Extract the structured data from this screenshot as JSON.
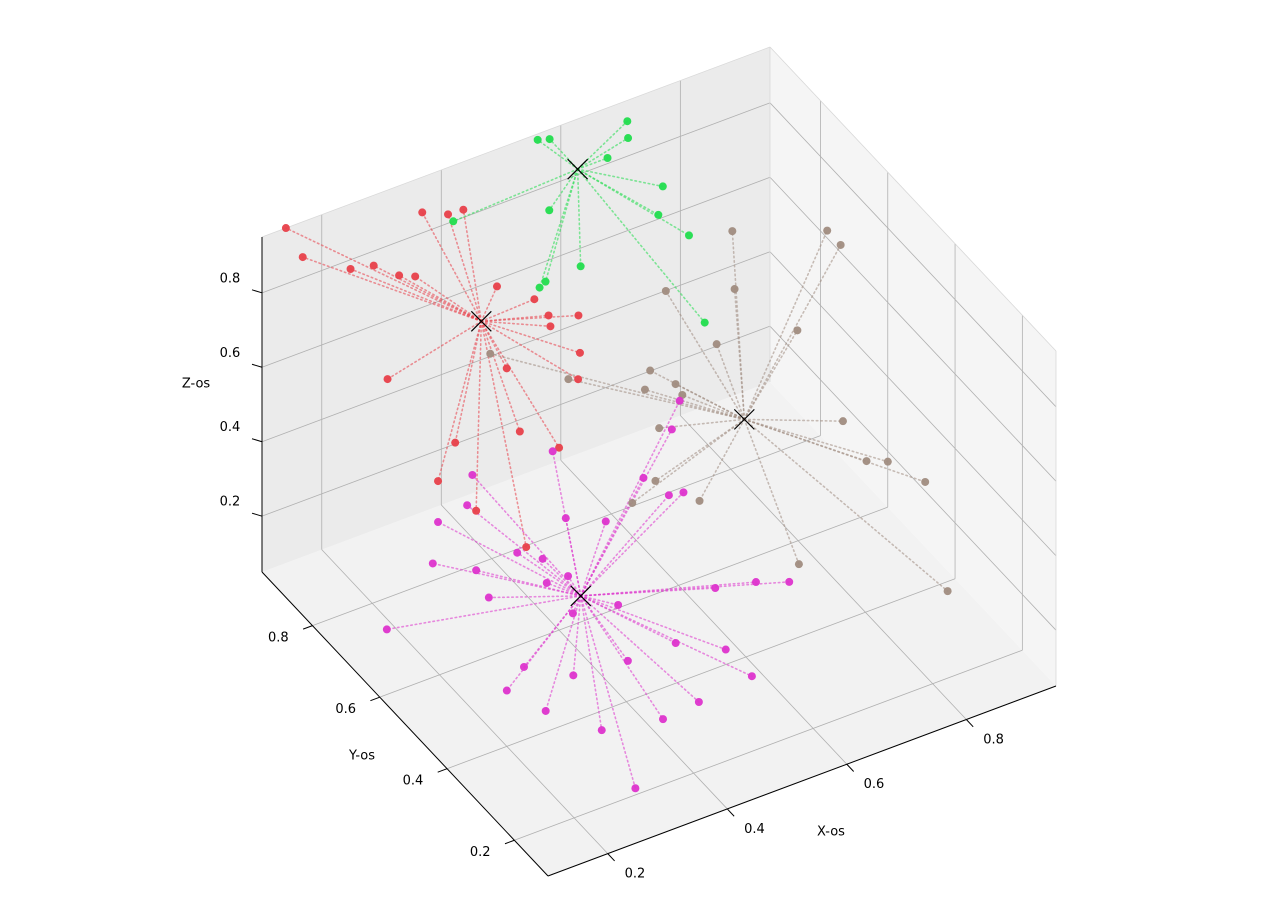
{
  "chart_data": {
    "type": "scatter",
    "projection": "3d",
    "grid": true,
    "xlabel": "X-os",
    "ylabel": "Y-os",
    "zlabel": "Z-os",
    "xlim": [
      0.1,
      0.95
    ],
    "ylim": [
      0.1,
      0.95
    ],
    "zlim": [
      0.05,
      0.95
    ],
    "x_ticks": [
      0.2,
      0.4,
      0.6,
      0.8
    ],
    "y_ticks": [
      0.2,
      0.4,
      0.6,
      0.8
    ],
    "z_ticks": [
      0.2,
      0.4,
      0.6,
      0.8
    ],
    "x_tick_labels": [
      "0.2",
      "0.4",
      "0.6",
      "0.8"
    ],
    "y_tick_labels": [
      "0.2",
      "0.4",
      "0.6",
      "0.8"
    ],
    "z_tick_labels": [
      "0.2",
      "0.4",
      "0.6",
      "0.8"
    ],
    "centroid_marker": "x",
    "centroid_color": "#000000",
    "connector_style": "dotted",
    "clusters": [
      {
        "color": "#e8404a",
        "centroid": [
          0.36,
          0.76,
          0.75
        ],
        "points": [
          [
            0.14,
            0.95,
            0.95
          ],
          [
            0.14,
            0.9,
            0.92
          ],
          [
            0.22,
            0.9,
            0.84
          ],
          [
            0.27,
            0.92,
            0.8
          ],
          [
            0.3,
            0.85,
            0.82
          ],
          [
            0.34,
            0.9,
            0.92
          ],
          [
            0.29,
            0.88,
            0.8
          ],
          [
            0.4,
            0.93,
            0.85
          ],
          [
            0.42,
            0.82,
            0.75
          ],
          [
            0.42,
            0.92,
            0.86
          ],
          [
            0.45,
            0.72,
            0.75
          ],
          [
            0.46,
            0.78,
            0.73
          ],
          [
            0.47,
            0.75,
            0.68
          ],
          [
            0.48,
            0.68,
            0.67
          ],
          [
            0.5,
            0.72,
            0.72
          ],
          [
            0.46,
            0.65,
            0.64
          ],
          [
            0.22,
            0.79,
            0.65
          ],
          [
            0.38,
            0.72,
            0.65
          ],
          [
            0.26,
            0.66,
            0.58
          ],
          [
            0.22,
            0.64,
            0.52
          ],
          [
            0.34,
            0.61,
            0.61
          ],
          [
            0.25,
            0.58,
            0.48
          ],
          [
            0.4,
            0.6,
            0.54
          ],
          [
            0.3,
            0.52,
            0.41
          ]
        ]
      },
      {
        "color": "#22dd4e",
        "centroid": [
          0.6,
          0.9,
          0.88
        ],
        "points": [
          [
            0.42,
            0.95,
            0.8
          ],
          [
            0.55,
            0.93,
            0.96
          ],
          [
            0.57,
            0.93,
            0.95
          ],
          [
            0.7,
            0.93,
            0.92
          ],
          [
            0.69,
            0.91,
            0.9
          ],
          [
            0.65,
            0.9,
            0.88
          ],
          [
            0.53,
            0.86,
            0.85
          ],
          [
            0.72,
            0.86,
            0.8
          ],
          [
            0.69,
            0.82,
            0.78
          ],
          [
            0.73,
            0.8,
            0.72
          ],
          [
            0.48,
            0.8,
            0.73
          ],
          [
            0.49,
            0.8,
            0.74
          ],
          [
            0.56,
            0.82,
            0.72
          ],
          [
            0.7,
            0.7,
            0.6
          ]
        ]
      },
      {
        "color": "#a08c80",
        "centroid": [
          0.71,
          0.6,
          0.43
        ],
        "points": [
          [
            0.42,
            0.84,
            0.55
          ],
          [
            0.5,
            0.75,
            0.52
          ],
          [
            0.62,
            0.72,
            0.5
          ],
          [
            0.6,
            0.7,
            0.48
          ],
          [
            0.64,
            0.68,
            0.49
          ],
          [
            0.59,
            0.64,
            0.44
          ],
          [
            0.64,
            0.66,
            0.48
          ],
          [
            0.72,
            0.7,
            0.53
          ],
          [
            0.68,
            0.78,
            0.62
          ],
          [
            0.75,
            0.7,
            0.66
          ],
          [
            0.78,
            0.76,
            0.74
          ],
          [
            0.55,
            0.58,
            0.38
          ],
          [
            0.59,
            0.52,
            0.36
          ],
          [
            0.5,
            0.56,
            0.37
          ],
          [
            0.81,
            0.62,
            0.59
          ],
          [
            0.83,
            0.52,
            0.43
          ],
          [
            0.86,
            0.44,
            0.38
          ],
          [
            0.83,
            0.45,
            0.39
          ],
          [
            0.9,
            0.4,
            0.34
          ],
          [
            0.95,
            0.78,
            0.62
          ],
          [
            0.95,
            0.74,
            0.62
          ],
          [
            0.7,
            0.42,
            0.22
          ],
          [
            0.87,
            0.28,
            0.18
          ]
        ]
      },
      {
        "color": "#dd33cc",
        "centroid": [
          0.38,
          0.5,
          0.25
        ],
        "points": [
          [
            0.14,
            0.65,
            0.16
          ],
          [
            0.2,
            0.62,
            0.33
          ],
          [
            0.22,
            0.64,
            0.41
          ],
          [
            0.28,
            0.66,
            0.4
          ],
          [
            0.3,
            0.68,
            0.45
          ],
          [
            0.44,
            0.69,
            0.42
          ],
          [
            0.25,
            0.58,
            0.32
          ],
          [
            0.26,
            0.56,
            0.26
          ],
          [
            0.33,
            0.6,
            0.3
          ],
          [
            0.35,
            0.56,
            0.31
          ],
          [
            0.34,
            0.53,
            0.28
          ],
          [
            0.37,
            0.52,
            0.29
          ],
          [
            0.4,
            0.58,
            0.37
          ],
          [
            0.45,
            0.55,
            0.36
          ],
          [
            0.53,
            0.58,
            0.4
          ],
          [
            0.55,
            0.54,
            0.38
          ],
          [
            0.58,
            0.55,
            0.36
          ],
          [
            0.6,
            0.62,
            0.45
          ],
          [
            0.63,
            0.65,
            0.48
          ],
          [
            0.35,
            0.47,
            0.25
          ],
          [
            0.42,
            0.46,
            0.24
          ],
          [
            0.2,
            0.4,
            0.2
          ],
          [
            0.24,
            0.42,
            0.22
          ],
          [
            0.3,
            0.38,
            0.2
          ],
          [
            0.22,
            0.32,
            0.21
          ],
          [
            0.28,
            0.26,
            0.18
          ],
          [
            0.38,
            0.36,
            0.21
          ],
          [
            0.36,
            0.22,
            0.2
          ],
          [
            0.28,
            0.16,
            0.12
          ],
          [
            0.42,
            0.22,
            0.21
          ],
          [
            0.51,
            0.3,
            0.22
          ],
          [
            0.52,
            0.24,
            0.2
          ],
          [
            0.6,
            0.37,
            0.28
          ],
          [
            0.65,
            0.36,
            0.26
          ],
          [
            0.56,
            0.42,
            0.24
          ],
          [
            0.46,
            0.36,
            0.21
          ]
        ]
      }
    ]
  }
}
